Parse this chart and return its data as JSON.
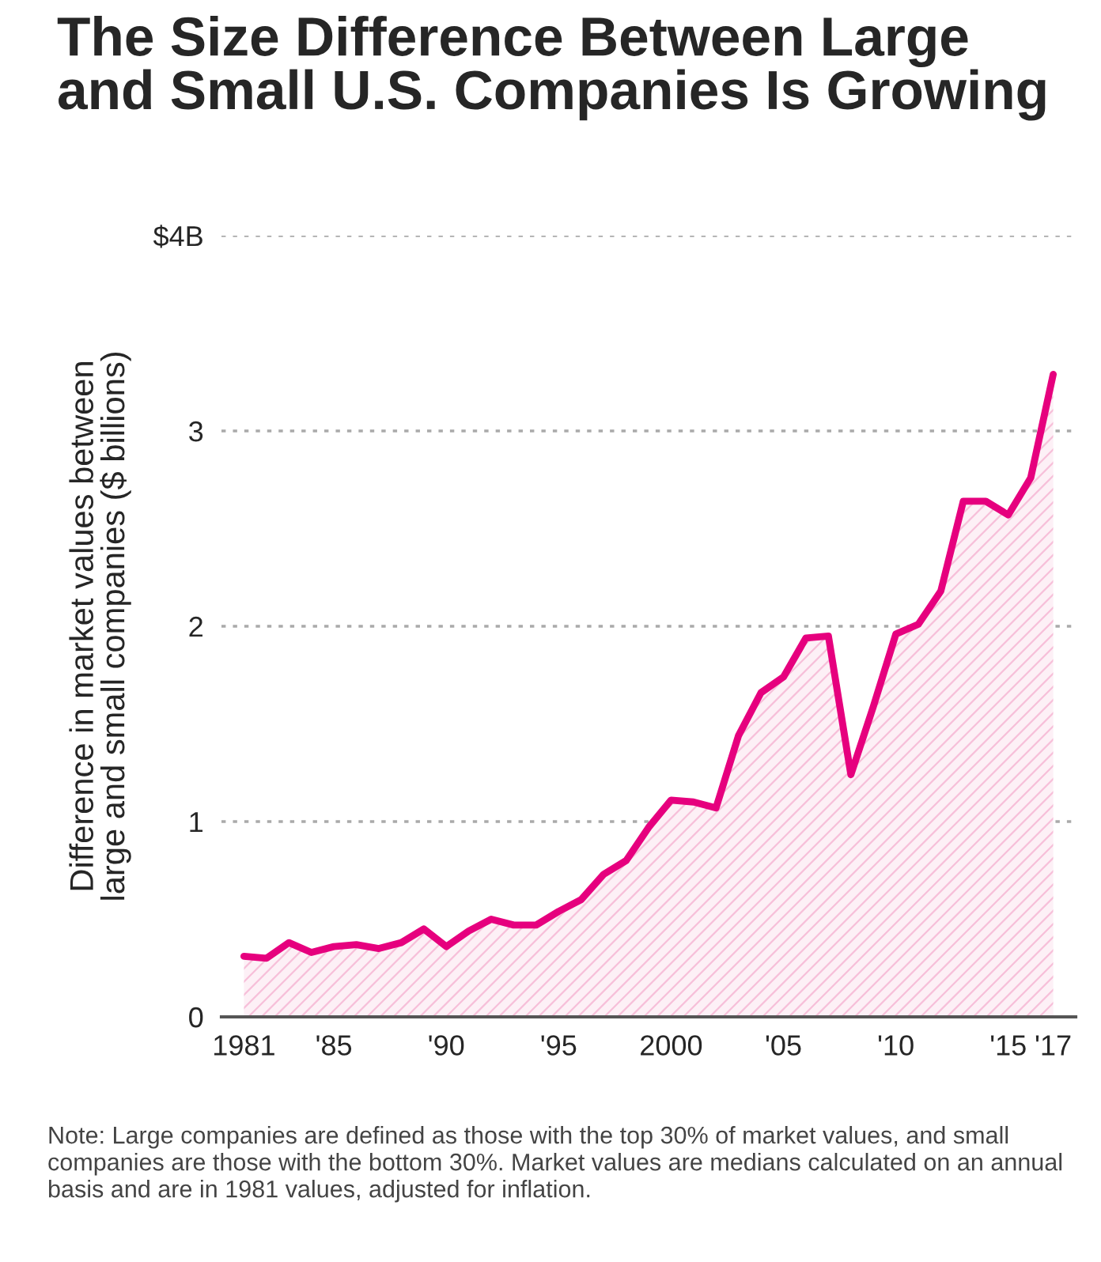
{
  "chart_data": {
    "type": "area",
    "title": "The Size Difference Between Large\nand Small U.S. Companies Is Growing",
    "ylabel": "Difference in market values between\nlarge and small companies ($ billions)",
    "x": [
      1981,
      1982,
      1983,
      1984,
      1985,
      1986,
      1987,
      1988,
      1989,
      1990,
      1991,
      1992,
      1993,
      1994,
      1995,
      1996,
      1997,
      1998,
      1999,
      2000,
      2001,
      2002,
      2003,
      2004,
      2005,
      2006,
      2007,
      2008,
      2009,
      2010,
      2011,
      2012,
      2013,
      2014,
      2015,
      2016,
      2017
    ],
    "series": [
      {
        "color": "#e6007e",
        "values": [
          0.31,
          0.3,
          0.38,
          0.33,
          0.36,
          0.37,
          0.35,
          0.38,
          0.45,
          0.36,
          0.44,
          0.5,
          0.47,
          0.47,
          0.54,
          0.6,
          0.73,
          0.8,
          0.97,
          1.11,
          1.1,
          1.07,
          1.44,
          1.66,
          1.74,
          1.94,
          1.95,
          1.24,
          1.59,
          1.96,
          2.01,
          2.18,
          2.64,
          2.64,
          2.57,
          2.76,
          3.29
        ]
      }
    ],
    "xlim": [
      1980,
      2018
    ],
    "xticks": [
      1981,
      {
        "value": 1985,
        "label": "'85"
      },
      {
        "value": 1990,
        "label": "'90"
      },
      {
        "value": 1995,
        "label": "'95"
      },
      2000,
      {
        "value": 2005,
        "label": "'05"
      },
      {
        "value": 2010,
        "label": "'10"
      },
      {
        "value": 2015,
        "label": "'15"
      },
      {
        "value": 2017,
        "label": "'17"
      }
    ],
    "ylim": [
      0,
      4
    ],
    "yticks": [
      0,
      1,
      2,
      3,
      {
        "value": 4,
        "label": "$4B"
      }
    ],
    "grid": "y",
    "annotations": [
      "Note: Large companies are defined as those with the top 30% of market values, and small companies are those with the bottom 30%. Market values are medians calculated on an annual basis and are in 1981 values, adjusted for inflation."
    ]
  }
}
